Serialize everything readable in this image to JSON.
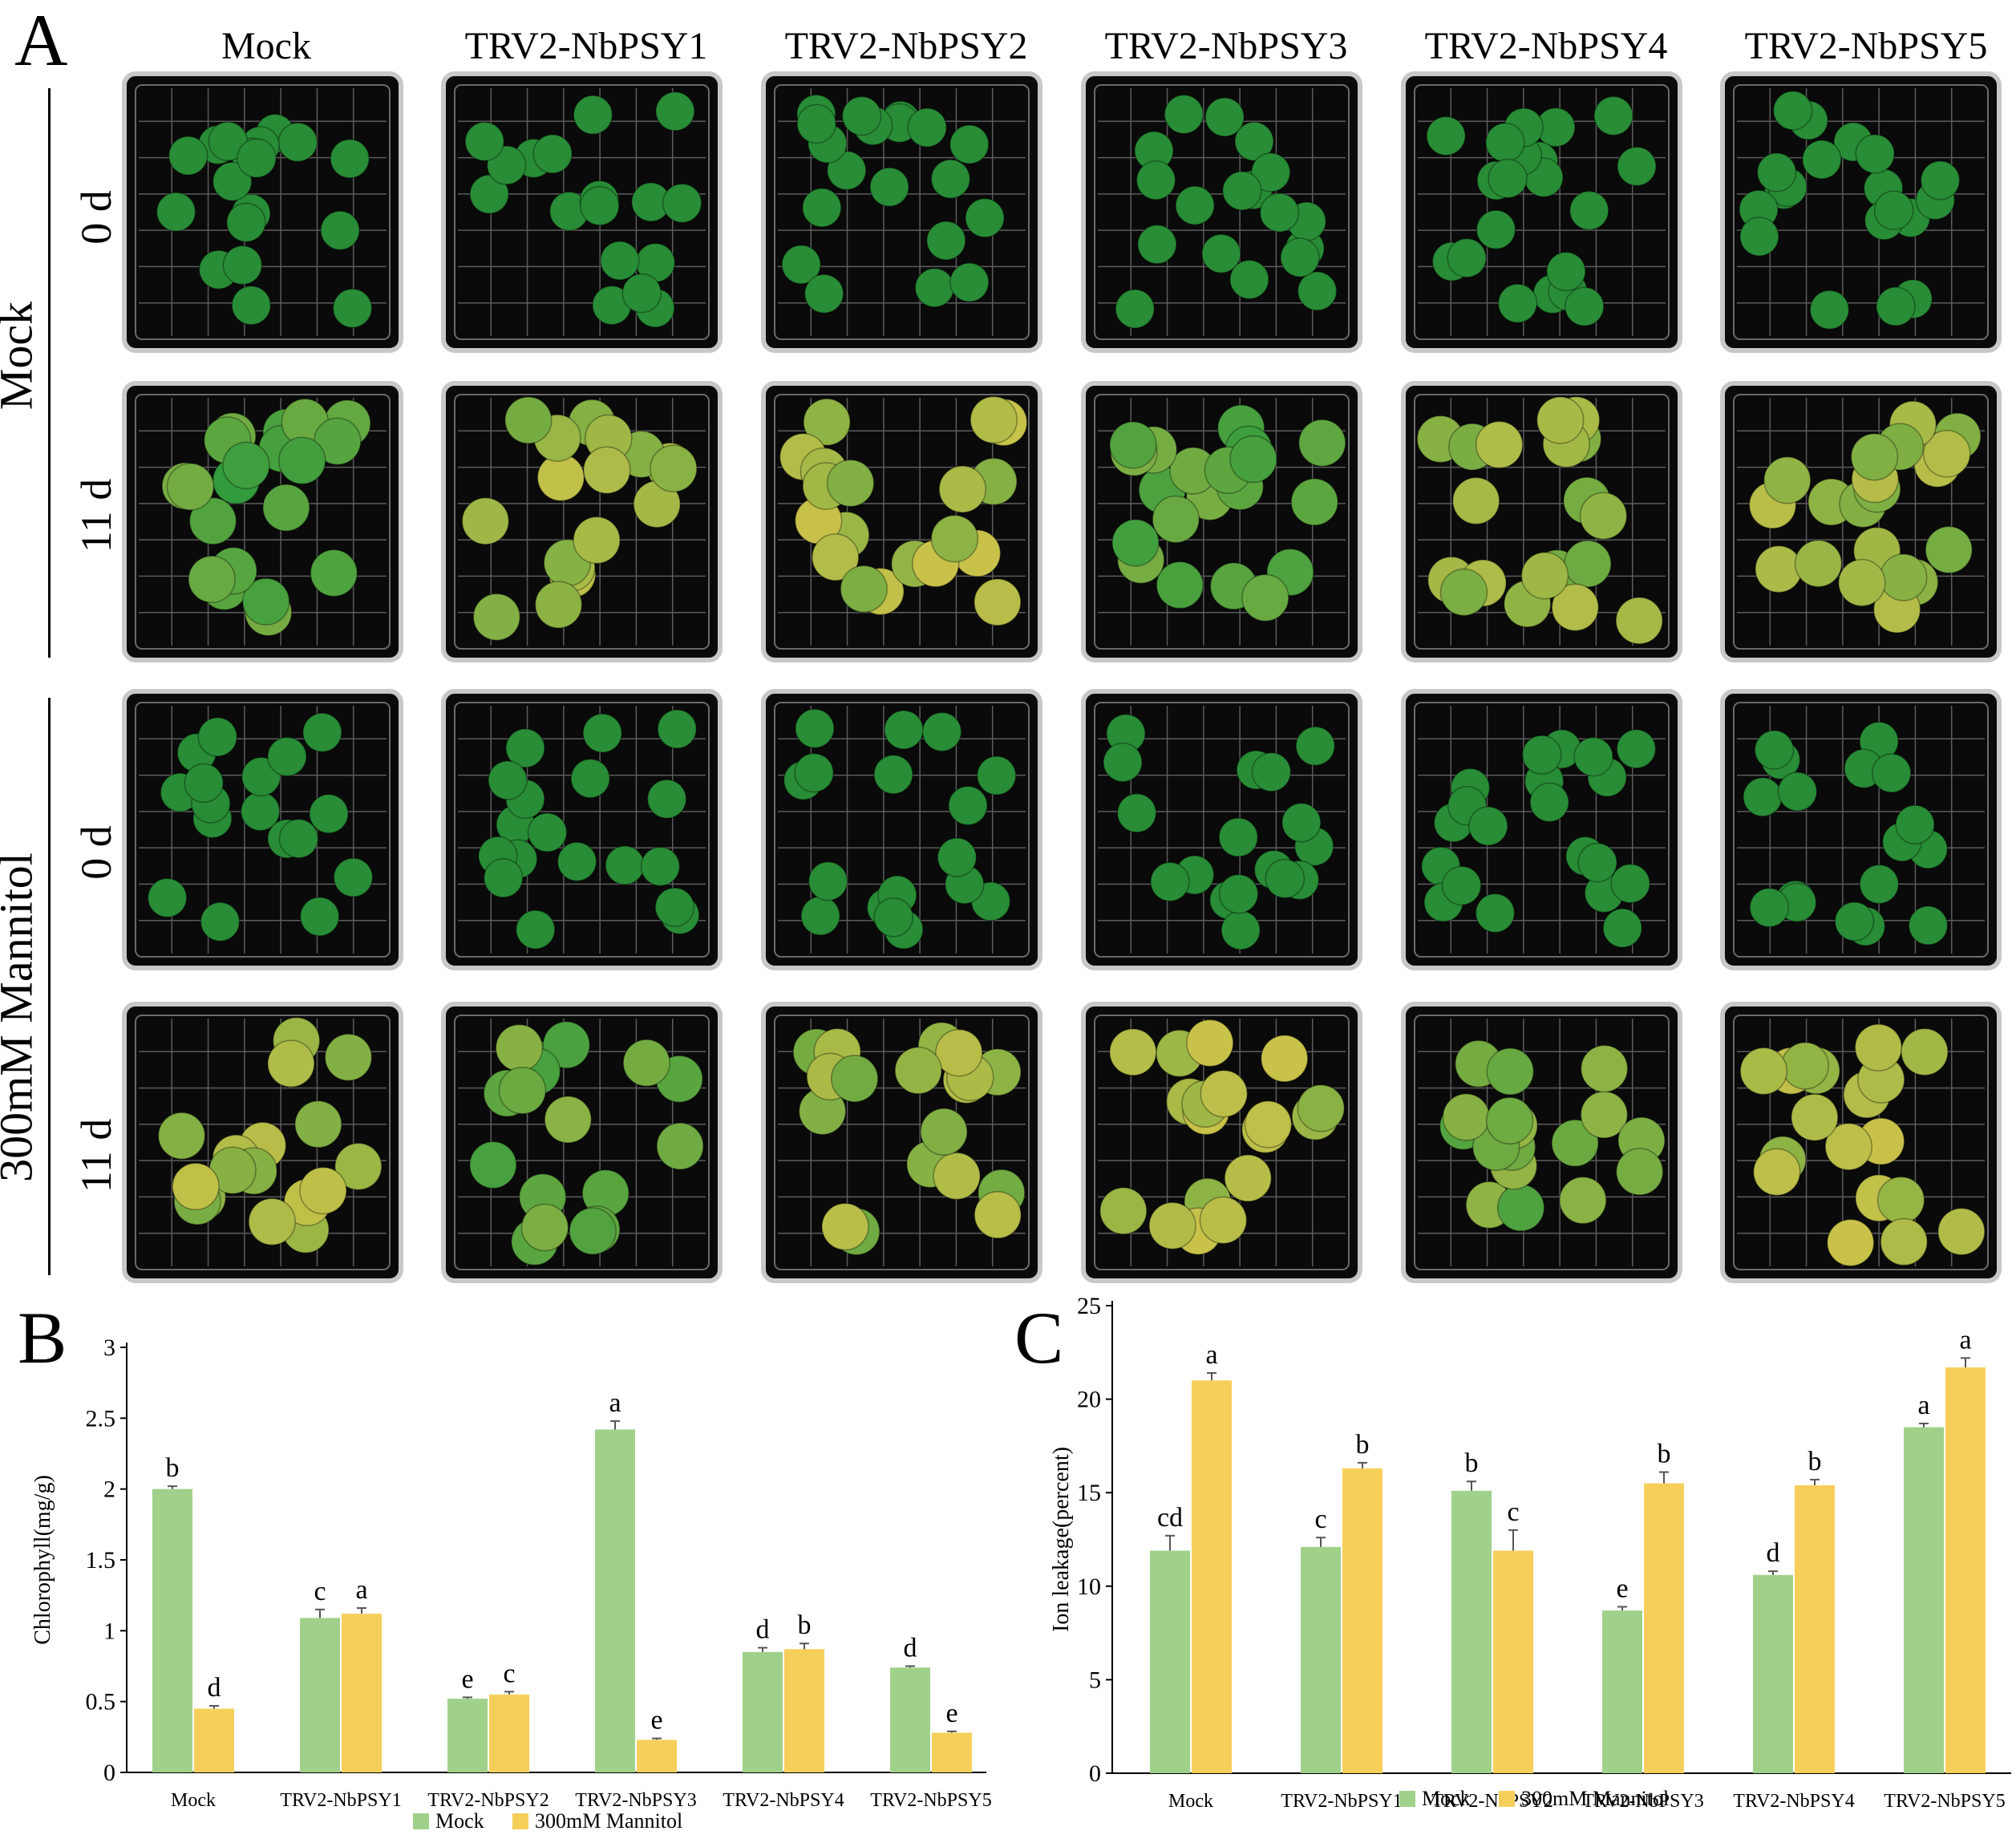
{
  "panel_a": {
    "letter": "A",
    "columns": [
      "Mock",
      "TRV2-NbPSY1",
      "TRV2-NbPSY2",
      "TRV2-NbPSY3",
      "TRV2-NbPSY4",
      "TRV2-NbPSY5"
    ],
    "row_groups": [
      {
        "label": "Mock",
        "rows": [
          "0 d",
          "11 d"
        ]
      },
      {
        "label": "300mM Mannitol",
        "rows": [
          "0 d",
          "11 d"
        ]
      }
    ],
    "leaf_colors": {
      "green": "#2e9a3c",
      "dark_green": "#1f7a2c",
      "yellow": "#c9c24a",
      "yellow_green": "#9cbf3a",
      "plate_bg": "#0a0a0a",
      "plate_edge": "#c8c8c8"
    },
    "leaf_greenness": [
      [
        1.0,
        1.0,
        1.0,
        1.0,
        1.0,
        1.0
      ],
      [
        0.75,
        0.3,
        0.25,
        0.7,
        0.35,
        0.3
      ],
      [
        1.0,
        1.0,
        1.0,
        1.0,
        1.0,
        1.0
      ],
      [
        0.3,
        0.65,
        0.35,
        0.2,
        0.55,
        0.15
      ]
    ]
  },
  "chart_data": [
    {
      "panel": "B",
      "type": "bar",
      "title": "",
      "xlabel": "",
      "ylabel": "Chlorophyll(mg/g)",
      "ylim": [
        0,
        3
      ],
      "yticks": [
        "0",
        "0.5",
        "1",
        "1.5",
        "2",
        "2.5",
        "3"
      ],
      "categories": [
        "Mock",
        "TRV2-NbPSY1",
        "TRV2-NbPSY2",
        "TRV2-NbPSY3",
        "TRV2-NbPSY4",
        "TRV2-NbPSY5"
      ],
      "series": [
        {
          "name": "Mock",
          "color": "#9fd18a",
          "values": [
            2.0,
            1.09,
            0.52,
            2.42,
            0.85,
            0.74
          ],
          "errors": [
            0.02,
            0.06,
            0.01,
            0.06,
            0.03,
            0.01
          ],
          "labels": [
            "b",
            "c",
            "e",
            "a",
            "d",
            "d"
          ]
        },
        {
          "name": "300mM Mannitol",
          "color": "#f6cf5a",
          "values": [
            0.45,
            1.12,
            0.55,
            0.23,
            0.87,
            0.28
          ],
          "errors": [
            0.02,
            0.04,
            0.02,
            0.01,
            0.04,
            0.01
          ],
          "labels": [
            "d",
            "a",
            "c",
            "e",
            "b",
            "e"
          ]
        }
      ],
      "legend": "bottom"
    },
    {
      "panel": "C",
      "type": "bar",
      "title": "",
      "xlabel": "",
      "ylabel": "Ion leakage(percent)",
      "ylim": [
        0,
        25
      ],
      "yticks": [
        "0",
        "5",
        "10",
        "15",
        "20",
        "25"
      ],
      "categories": [
        "Mock",
        "TRV2-NbPSY1",
        "TRV2-NbPSY2",
        "TRV2-NbPSY3",
        "TRV2-NbPSY4",
        "TRV2-NbPSY5"
      ],
      "series": [
        {
          "name": "Mock",
          "color": "#9fd18a",
          "values": [
            11.9,
            12.1,
            15.1,
            8.7,
            10.6,
            18.5
          ],
          "errors": [
            0.8,
            0.5,
            0.5,
            0.2,
            0.2,
            0.2
          ],
          "labels": [
            "cd",
            "c",
            "b",
            "e",
            "d",
            "a"
          ]
        },
        {
          "name": "300mM Mannitol",
          "color": "#f6cf5a",
          "values": [
            21.0,
            16.3,
            11.9,
            15.5,
            15.4,
            21.7
          ],
          "errors": [
            0.4,
            0.3,
            1.1,
            0.6,
            0.3,
            0.5
          ],
          "labels": [
            "a",
            "b",
            "c",
            "b",
            "b",
            "a"
          ]
        }
      ],
      "legend": "bottom"
    }
  ]
}
